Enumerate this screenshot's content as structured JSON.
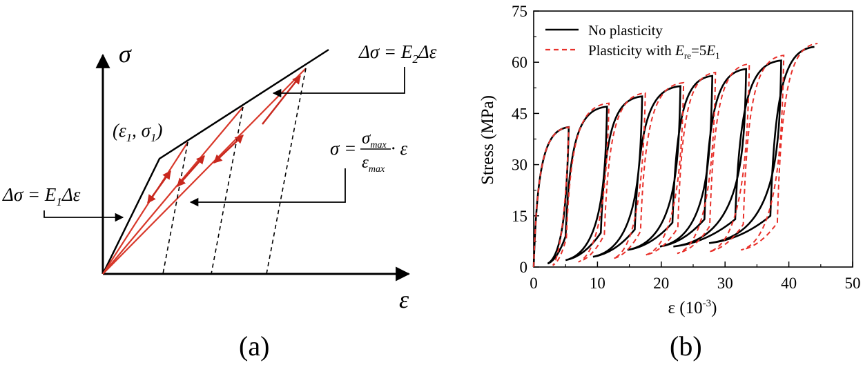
{
  "chart_data": [
    {
      "type": "diagram",
      "panel_label": "(a)",
      "title": "",
      "y_axis_symbol": "σ",
      "x_axis_symbol": "ε",
      "annotations": {
        "slope2_main": "Δσ = E",
        "slope2_sub": "2",
        "slope2_tail": "Δε",
        "slope1_main": "Δσ = E",
        "slope1_sub": "1",
        "slope1_tail": "Δε",
        "yield_point_eps": "ε",
        "yield_point_sig": "σ",
        "yield_point_sub": "1",
        "secant_lhs": "σ =",
        "secant_num": "σ",
        "secant_num_sub": "max",
        "secant_den": "ε",
        "secant_den_sub": "max",
        "secant_tail": "· ε"
      },
      "bilinear_curve": [
        [
          0,
          0
        ],
        [
          0.17,
          0.55
        ],
        [
          0.68,
          1.0
        ]
      ],
      "secant_lines_to": [
        [
          0.27,
          0.62
        ],
        [
          0.46,
          0.78
        ],
        [
          0.68,
          1.0
        ]
      ],
      "unloading_dashed": [
        {
          "from": [
            0.27,
            0.62
          ],
          "to": [
            0.19,
            0.0
          ]
        },
        {
          "from": [
            0.46,
            0.78
          ],
          "to": [
            0.36,
            0.0
          ]
        },
        {
          "from": [
            0.68,
            1.0
          ],
          "to": [
            0.55,
            0.0
          ]
        }
      ]
    },
    {
      "type": "line",
      "panel_label": "(b)",
      "title": "",
      "xlabel": "ε (10",
      "xlabel_sup": "-3",
      "xlabel_close": ")",
      "ylabel": "Stress (MPa)",
      "xlim": [
        0,
        50
      ],
      "ylim": [
        0,
        75
      ],
      "xticks": [
        0,
        10,
        20,
        30,
        40,
        50
      ],
      "yticks": [
        0,
        15,
        30,
        45,
        60,
        75
      ],
      "legend_position": "top-left",
      "legend": [
        {
          "name": "No plasticity",
          "style": "solid",
          "color": "#000000"
        },
        {
          "name": "Plasticity with ",
          "name_italic": "E",
          "name_sub": "re",
          "name_mid": "=5",
          "name_italic2": "E",
          "name_sub2": "1",
          "style": "dashed",
          "color": "#e8302a"
        }
      ],
      "series": [
        {
          "name": "No plasticity",
          "color": "#000000",
          "cycles": [
            {
              "peak": [
                5.5,
                41
              ],
              "end": [
                2.2,
                1
              ]
            },
            {
              "peak": [
                11.5,
                47
              ],
              "end": [
                5.0,
                2
              ]
            },
            {
              "peak": [
                17.0,
                50
              ],
              "end": [
                9.3,
                3
              ]
            },
            {
              "peak": [
                23.0,
                53
              ],
              "end": [
                14.7,
                5
              ]
            },
            {
              "peak": [
                28.0,
                56
              ],
              "end": [
                19.8,
                6
              ]
            },
            {
              "peak": [
                33.3,
                58
              ],
              "end": [
                21.9,
                6
              ]
            },
            {
              "peak": [
                38.8,
                60.5
              ],
              "end": [
                27.5,
                7
              ]
            },
            {
              "peak": [
                44.0,
                64.5
              ],
              "end": null
            }
          ]
        },
        {
          "name": "Plasticity with Ere=5E1",
          "color": "#e8302a",
          "cycles": [
            {
              "peak": [
                5.5,
                41
              ],
              "end": [
                3.0,
                0.5
              ]
            },
            {
              "peak": [
                11.8,
                48
              ],
              "end": [
                7.0,
                1.5
              ]
            },
            {
              "peak": [
                17.5,
                51
              ],
              "end": [
                12.5,
                2.5
              ]
            },
            {
              "peak": [
                23.5,
                54
              ],
              "end": [
                17.5,
                3.5
              ]
            },
            {
              "peak": [
                28.5,
                57
              ],
              "end": [
                22.5,
                4.0
              ]
            },
            {
              "peak": [
                33.8,
                59.5
              ],
              "end": [
                27.5,
                4.5
              ]
            },
            {
              "peak": [
                39.2,
                62
              ],
              "end": [
                32.5,
                5.0
              ]
            },
            {
              "peak": [
                44.5,
                65.5
              ],
              "end": null
            }
          ]
        }
      ]
    }
  ]
}
